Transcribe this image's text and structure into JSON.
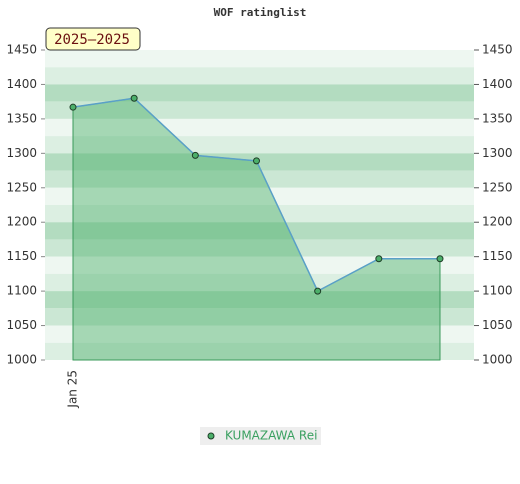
{
  "chart_data": {
    "type": "line",
    "title": "WOF ratinglist",
    "annotation": "2025–2025",
    "categories": [
      "Jan 25",
      null,
      null,
      null,
      null,
      null,
      null
    ],
    "series": [
      {
        "name": "KUMAZAWA Rei",
        "color": "#5aa0c8",
        "values": [
          1367,
          1380,
          1297,
          1289,
          1100,
          1147,
          1147
        ]
      }
    ],
    "ylim": [
      1000,
      1450
    ],
    "yticks": [
      1000,
      1050,
      1100,
      1150,
      1200,
      1250,
      1300,
      1350,
      1400,
      1450
    ],
    "y2lim": [
      1000,
      1450
    ],
    "y2ticks": [
      1000,
      1050,
      1100,
      1150,
      1200,
      1250,
      1300,
      1350,
      1400,
      1450
    ],
    "legend": "bottom"
  }
}
